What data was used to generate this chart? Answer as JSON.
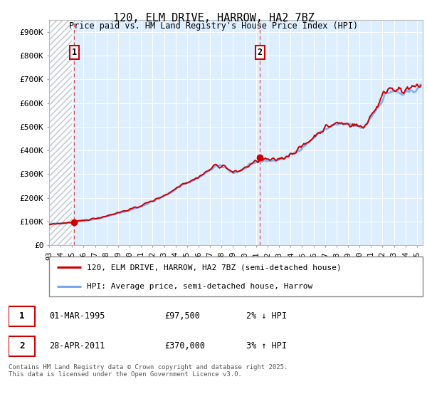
{
  "title": "120, ELM DRIVE, HARROW, HA2 7BZ",
  "subtitle": "Price paid vs. HM Land Registry's House Price Index (HPI)",
  "ylabel_ticks": [
    "£0",
    "£100K",
    "£200K",
    "£300K",
    "£400K",
    "£500K",
    "£600K",
    "£700K",
    "£800K",
    "£900K"
  ],
  "ytick_vals": [
    0,
    100000,
    200000,
    300000,
    400000,
    500000,
    600000,
    700000,
    800000,
    900000
  ],
  "ylim": [
    0,
    950000
  ],
  "xlim_start": 1993.0,
  "xlim_end": 2025.5,
  "xticks": [
    1993,
    1994,
    1995,
    1996,
    1997,
    1998,
    1999,
    2000,
    2001,
    2002,
    2003,
    2004,
    2005,
    2006,
    2007,
    2008,
    2009,
    2010,
    2011,
    2012,
    2013,
    2014,
    2015,
    2016,
    2017,
    2018,
    2019,
    2020,
    2021,
    2022,
    2023,
    2024,
    2025
  ],
  "hpi_color": "#77aaee",
  "price_color": "#cc0000",
  "dashed_line_color": "#dd3333",
  "marker1_x": 1995.17,
  "marker1_y": 97500,
  "marker2_x": 2011.33,
  "marker2_y": 370000,
  "annotation1_label": "1",
  "annotation2_label": "2",
  "legend_line1": "120, ELM DRIVE, HARROW, HA2 7BZ (semi-detached house)",
  "legend_line2": "HPI: Average price, semi-detached house, Harrow",
  "table_row1": [
    "1",
    "01-MAR-1995",
    "£97,500",
    "2% ↓ HPI"
  ],
  "table_row2": [
    "2",
    "28-APR-2011",
    "£370,000",
    "3% ↑ HPI"
  ],
  "footer": "Contains HM Land Registry data © Crown copyright and database right 2025.\nThis data is licensed under the Open Government Licence v3.0.",
  "bg_plot_color": "#ddeeff",
  "hatch_color": "#bbbbbb"
}
